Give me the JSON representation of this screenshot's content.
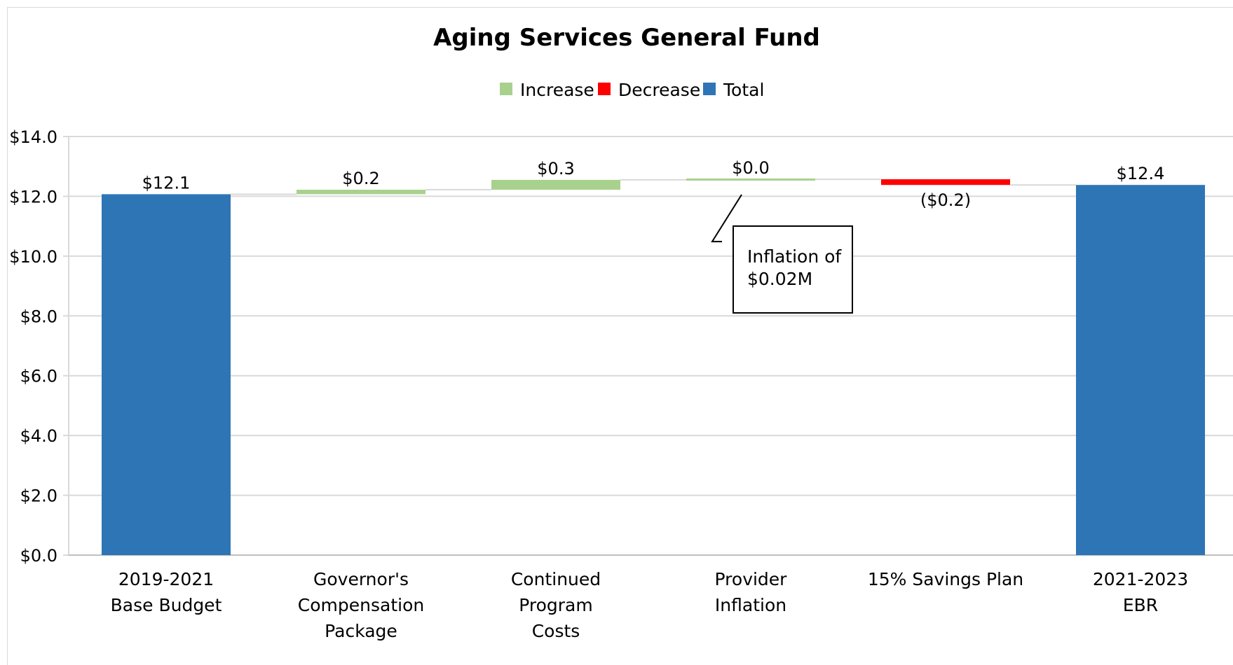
{
  "chart_data": {
    "type": "bar",
    "subtype": "waterfall",
    "title": "Aging Services General Fund",
    "legend": {
      "placement": "top-center",
      "entries": [
        {
          "name": "Increase",
          "color": "#a9d18e"
        },
        {
          "name": "Decrease",
          "color": "#ff0000"
        },
        {
          "name": "Total",
          "color": "#2e75b6"
        }
      ]
    },
    "categories": [
      [
        "2019-2021",
        "Base Budget"
      ],
      [
        "Governor's",
        "Compensation",
        "Package"
      ],
      [
        "Continued",
        "Program",
        "Costs"
      ],
      [
        "Provider",
        "Inflation"
      ],
      [
        "15% Savings Plan"
      ],
      [
        "2021-2023",
        "EBR"
      ]
    ],
    "steps": [
      {
        "kind": "total",
        "start": 0,
        "end": 12.07,
        "label": "$12.1"
      },
      {
        "kind": "increase",
        "start": 12.07,
        "end": 12.22,
        "label": "$0.2"
      },
      {
        "kind": "increase",
        "start": 12.22,
        "end": 12.55,
        "label": "$0.3"
      },
      {
        "kind": "increase",
        "start": 12.55,
        "end": 12.57,
        "label": "$0.0"
      },
      {
        "kind": "decrease",
        "start": 12.57,
        "end": 12.38,
        "label": "($0.2)"
      },
      {
        "kind": "total",
        "start": 0,
        "end": 12.38,
        "label": "$12.4"
      }
    ],
    "ylim": [
      0,
      14
    ],
    "yticks": [
      0,
      2,
      4,
      6,
      8,
      10,
      12,
      14
    ],
    "ytick_labels": [
      "$0.0",
      "$2.0",
      "$4.0",
      "$6.0",
      "$8.0",
      "$10.0",
      "$12.0",
      "$14.0"
    ],
    "grid": true,
    "annotation": {
      "lines": [
        "Inflation of",
        "$0.02M"
      ],
      "target_category_index": 3
    }
  },
  "colors": {
    "increase": "#a9d18e",
    "decrease": "#ff0000",
    "total": "#2e75b6",
    "grid": "#d9d9d9",
    "connector": "#d9d9d9"
  }
}
